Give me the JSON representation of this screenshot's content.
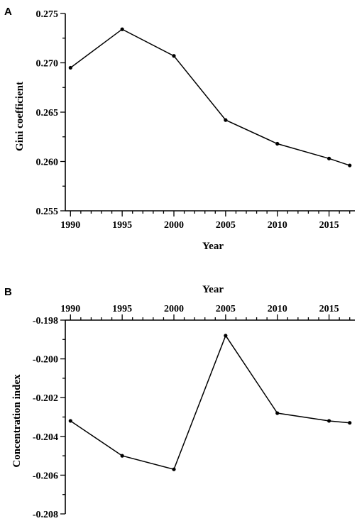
{
  "chart_data": [
    {
      "panel": "A",
      "type": "line",
      "title": "",
      "xlabel": "Year",
      "ylabel": "Gini coefficient",
      "x_ticks": [
        1990,
        1995,
        2000,
        2005,
        2010,
        2015
      ],
      "y_ticks": [
        "0.275",
        "0.270",
        "0.265",
        "0.260",
        "0.255"
      ],
      "xlim": [
        1989.5,
        2017.5
      ],
      "ylim": [
        0.255,
        0.275
      ],
      "x_axis_position": "bottom",
      "grid": false,
      "series": [
        {
          "x": [
            1990,
            1995,
            2000,
            2005,
            2010,
            2015,
            2017
          ],
          "values": [
            0.2695,
            0.2734,
            0.2707,
            0.2642,
            0.2618,
            0.2603,
            0.2596
          ]
        }
      ]
    },
    {
      "panel": "B",
      "type": "line",
      "title": "",
      "xlabel": "Year",
      "ylabel": "Concentration index",
      "x_ticks": [
        1990,
        1995,
        2000,
        2005,
        2010,
        2015
      ],
      "y_ticks": [
        "-0.198",
        "-0.200",
        "-0.202",
        "-0.204",
        "-0.206",
        "-0.208"
      ],
      "xlim": [
        1989.5,
        2017.5
      ],
      "ylim": [
        -0.208,
        -0.198
      ],
      "x_axis_position": "top",
      "grid": false,
      "series": [
        {
          "x": [
            1990,
            1995,
            2000,
            2005,
            2010,
            2015,
            2017
          ],
          "values": [
            -0.2032,
            -0.205,
            -0.2057,
            -0.1988,
            -0.2028,
            -0.2032,
            -0.2033
          ]
        }
      ]
    }
  ]
}
